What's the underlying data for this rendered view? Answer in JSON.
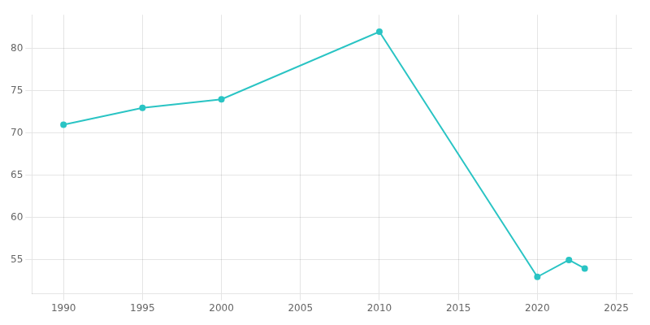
{
  "chart_data": {
    "type": "line",
    "x": [
      1990,
      1995,
      2000,
      2010,
      2020,
      2022,
      2023
    ],
    "values": [
      71,
      73,
      74,
      82,
      53,
      55,
      54
    ],
    "color": "#2ac4c4",
    "marker": "circle",
    "line_style": "solid",
    "xlim": [
      1988,
      2026
    ],
    "ylim": [
      51,
      84
    ],
    "xticks": [
      1990,
      1995,
      2000,
      2005,
      2010,
      2015,
      2020,
      2025
    ],
    "yticks": [
      55,
      60,
      65,
      70,
      75,
      80
    ],
    "grid": true
  }
}
